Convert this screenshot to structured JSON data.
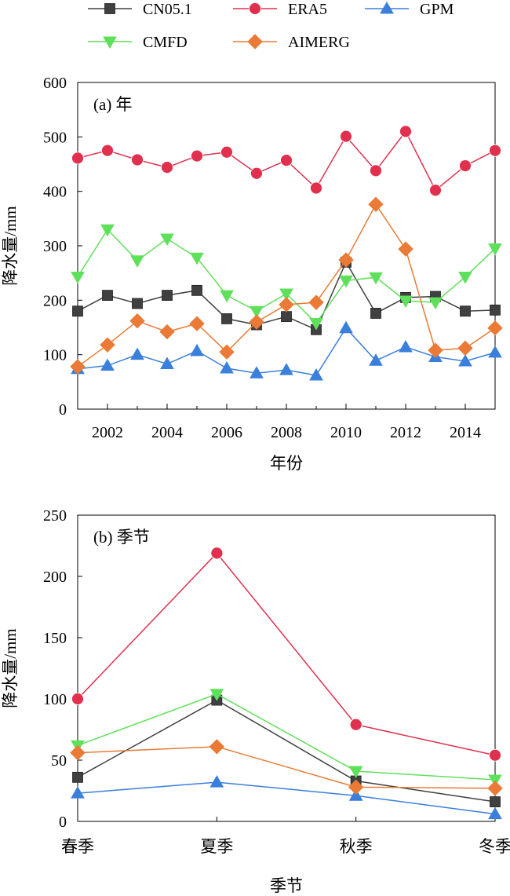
{
  "legend": [
    {
      "name": "CN05.1",
      "color": "#404040",
      "marker": "square"
    },
    {
      "name": "ERA5",
      "color": "#e0304e",
      "marker": "circle"
    },
    {
      "name": "GPM",
      "color": "#3a7fdc",
      "marker": "triangle-up"
    },
    {
      "name": "CMFD",
      "color": "#5fe05a",
      "marker": "triangle-down"
    },
    {
      "name": "AIMERG",
      "color": "#ea7a35",
      "marker": "diamond"
    }
  ],
  "chart_data": [
    {
      "type": "line",
      "panel_label": "(a) 年",
      "xlabel": "年份",
      "ylabel": "降水量/mm",
      "x": [
        2001,
        2002,
        2003,
        2004,
        2005,
        2006,
        2007,
        2008,
        2009,
        2010,
        2011,
        2012,
        2013,
        2014,
        2015
      ],
      "xlim": [
        2001,
        2015
      ],
      "ylim": [
        0,
        600
      ],
      "x_ticks": [
        2002,
        2004,
        2006,
        2008,
        2010,
        2012,
        2014
      ],
      "y_ticks": [
        0,
        100,
        200,
        300,
        400,
        500,
        600
      ],
      "grid": false,
      "legend_position": "top",
      "series": [
        {
          "name": "CN05.1",
          "values": [
            180,
            209,
            194,
            209,
            218,
            166,
            155,
            170,
            146,
            270,
            176,
            205,
            207,
            180,
            182
          ]
        },
        {
          "name": "ERA5",
          "values": [
            461,
            475,
            458,
            444,
            465,
            472,
            433,
            457,
            406,
            501,
            438,
            510,
            402,
            447,
            475
          ]
        },
        {
          "name": "GPM",
          "values": [
            74,
            80,
            100,
            83,
            107,
            75,
            66,
            72,
            62,
            149,
            89,
            114,
            96,
            88,
            104
          ]
        },
        {
          "name": "CMFD",
          "values": [
            243,
            330,
            273,
            313,
            278,
            209,
            180,
            212,
            158,
            236,
            242,
            199,
            196,
            243,
            295
          ]
        },
        {
          "name": "AIMERG",
          "values": [
            78,
            118,
            162,
            142,
            157,
            105,
            160,
            192,
            196,
            274,
            376,
            294,
            108,
            112,
            149
          ]
        }
      ]
    },
    {
      "type": "line",
      "panel_label": "(b) 季节",
      "xlabel": "季节",
      "ylabel": "降水量/mm",
      "categories": [
        "春季",
        "夏季",
        "秋季",
        "冬季"
      ],
      "ylim": [
        0,
        250
      ],
      "y_ticks": [
        0,
        50,
        100,
        150,
        200,
        250
      ],
      "grid": false,
      "series": [
        {
          "name": "CN05.1",
          "values": [
            36,
            99,
            33,
            16
          ]
        },
        {
          "name": "ERA5",
          "values": [
            100,
            219,
            79,
            54
          ]
        },
        {
          "name": "GPM",
          "values": [
            23,
            32,
            21,
            6
          ]
        },
        {
          "name": "CMFD",
          "values": [
            62,
            104,
            41,
            34
          ]
        },
        {
          "name": "AIMERG",
          "values": [
            56,
            61,
            28,
            27
          ]
        }
      ]
    }
  ]
}
